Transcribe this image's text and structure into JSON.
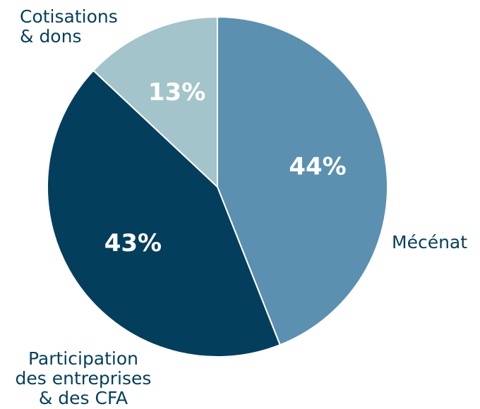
{
  "chart_data": {
    "type": "pie",
    "categories": [
      "Mécénat",
      "Participation\ndes entreprises\n& des CFA",
      "Cotisations\n& dons"
    ],
    "values": [
      44,
      43,
      13
    ],
    "value_labels": [
      "44%",
      "43%",
      "13%"
    ],
    "colors": [
      "#5b90b0",
      "#033f5c",
      "#a3c4ca"
    ]
  }
}
